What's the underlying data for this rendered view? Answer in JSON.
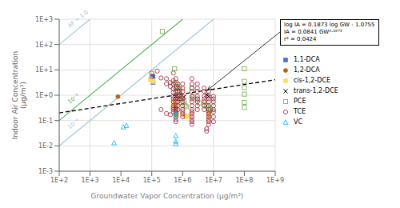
{
  "chart_data": {
    "type": "scatter",
    "xlabel": "Groundwater Vapor Concentration (μg/m³)",
    "ylabel": "Indoor Air Concentration\n(μg/m³)",
    "log": true,
    "grid": true,
    "legend": "right",
    "xlim": [
      100,
      1000000000
    ],
    "ylim": [
      0.001,
      1000
    ],
    "xticks": [
      {
        "value": 100,
        "label": "1E+2"
      },
      {
        "value": 1000,
        "label": "1E+3"
      },
      {
        "value": 10000,
        "label": "1E+4"
      },
      {
        "value": 100000,
        "label": "1E+5"
      },
      {
        "value": 1000000,
        "label": "1E+6"
      },
      {
        "value": 10000000,
        "label": "1E+7"
      },
      {
        "value": 100000000,
        "label": "1E+8"
      },
      {
        "value": 1000000000,
        "label": "1E+9"
      }
    ],
    "yticks": [
      {
        "value": 0.001,
        "label": "1E-3"
      },
      {
        "value": 0.01,
        "label": "1E-2"
      },
      {
        "value": 0.1,
        "label": "1E-1"
      },
      {
        "value": 1,
        "label": "1E+0"
      },
      {
        "value": 10,
        "label": "1E+1"
      },
      {
        "value": 100,
        "label": "1E+2"
      },
      {
        "value": 1000,
        "label": "1E+3"
      }
    ],
    "lines": [
      {
        "type": "line",
        "color": "#a0c4d8",
        "line_style": "solid",
        "x": [
          100,
          1000
        ],
        "values": [
          100,
          1000
        ]
      },
      {
        "type": "line",
        "color": "#4caf50",
        "line_style": "solid",
        "x": [
          100,
          1000000
        ],
        "values": [
          0.1,
          1000
        ]
      },
      {
        "type": "line",
        "color": "#a0c4d8",
        "line_style": "solid",
        "x": [
          100,
          10000000
        ],
        "values": [
          0.01,
          1000
        ]
      },
      {
        "type": "line",
        "color": "#000000",
        "line_style": "dashed",
        "x": [
          100,
          1000000000
        ],
        "values": [
          0.19911,
          4.0757
        ]
      }
    ],
    "series": [
      {
        "name": "1,1-DCA",
        "type": "scatter",
        "color": "#4472c4",
        "marker": "square",
        "x": [
          110000,
          110000
        ],
        "values": [
          5.5,
          3.2
        ]
      },
      {
        "name": "1,2-DCA",
        "type": "scatter",
        "color": "#c55a11",
        "marker": "circle",
        "x": [
          8000
        ],
        "values": [
          0.88
        ]
      },
      {
        "name": "cis-1,2-DCE",
        "type": "scatter",
        "color": "#ffd966",
        "marker": "square",
        "x": [
          90000,
          110000,
          500000,
          550000,
          550000,
          600000,
          650000,
          650000,
          1200000,
          1300000,
          1500000,
          7000000,
          7000000
        ],
        "values": [
          4.2,
          3.5,
          0.55,
          0.45,
          0.38,
          0.22,
          0.19,
          0.16,
          0.16,
          0.14,
          0.15,
          0.18,
          0.14
        ]
      },
      {
        "name": "trans-1,2-DCE",
        "type": "scatter",
        "color": "#000000",
        "marker": "x",
        "x": [
          600000,
          1100000,
          6000000,
          7000000
        ],
        "values": [
          0.88,
          0.85,
          1.05,
          0.9
        ]
      },
      {
        "name": "PCE",
        "type": "scatter",
        "color": "#70ad47",
        "marker": "square-open",
        "x": [
          220000,
          550000,
          600000,
          650000,
          700000,
          800000,
          900000,
          900000,
          1100000,
          1200000,
          1300000,
          2000000,
          2200000,
          3000000,
          3500000,
          5000000,
          6000000,
          7000000,
          8000000,
          100000000,
          100000000,
          100000000,
          100000000,
          100000000,
          100000000
        ],
        "values": [
          330,
          11,
          3.2,
          2.2,
          1.4,
          1.1,
          0.75,
          0.52,
          0.55,
          0.4,
          0.35,
          1.9,
          0.85,
          0.68,
          0.5,
          0.42,
          0.38,
          0.32,
          0.28,
          11,
          3.5,
          2.0,
          1.1,
          0.52,
          0.33
        ]
      },
      {
        "name": "TCE",
        "type": "scatter",
        "color": "#9b2335",
        "marker": "circle-open",
        "x": [
          100000,
          100000,
          150000,
          200000,
          300000,
          300000,
          400000,
          400000,
          500000,
          500000,
          500000,
          500000,
          500000,
          500000,
          500000,
          500000,
          500000,
          500000,
          500000,
          500000,
          600000,
          600000,
          600000,
          600000,
          600000,
          600000,
          600000,
          600000,
          600000,
          600000,
          600000,
          600000,
          600000,
          600000,
          600000,
          700000,
          700000,
          700000,
          700000,
          700000,
          700000,
          700000,
          700000,
          800000,
          800000,
          800000,
          800000,
          1000000,
          1000000,
          1000000,
          1000000,
          1000000,
          1000000,
          1000000,
          1000000,
          1000000,
          1000000,
          1000000,
          2000000,
          2000000,
          2000000,
          2000000,
          2000000,
          2000000,
          2000000,
          2000000,
          2000000,
          2000000,
          2000000,
          2000000,
          2000000,
          2000000,
          2000000,
          3000000,
          3000000,
          3000000,
          3000000,
          3000000,
          3000000,
          3000000,
          3000000,
          5000000,
          5000000,
          5000000,
          5000000,
          5000000,
          5000000,
          5000000,
          7000000,
          7000000,
          7000000,
          7000000,
          7000000,
          7000000,
          7000000,
          7000000,
          7000000,
          7000000,
          7000000,
          7000000,
          10000000,
          10000000,
          10000000,
          10000000,
          10000000,
          10000000,
          10000000,
          10000000,
          200000,
          300000,
          400000,
          6000000,
          6000000
        ],
        "values": [
          7.5,
          5.5,
          9.0,
          4.8,
          4.5,
          2.8,
          3.2,
          2.2,
          7.5,
          3.8,
          2.8,
          1.8,
          1.3,
          0.9,
          0.72,
          0.55,
          0.38,
          0.32,
          0.27,
          0.22,
          4.5,
          2.8,
          1.9,
          1.4,
          0.9,
          0.72,
          0.55,
          0.38,
          0.32,
          0.27,
          0.22,
          0.18,
          0.14,
          0.11,
          0.09,
          2.8,
          1.9,
          1.4,
          0.9,
          0.72,
          0.55,
          0.38,
          0.27,
          1.9,
          1.4,
          0.9,
          0.72,
          2.8,
          1.9,
          1.4,
          0.9,
          0.72,
          0.55,
          0.38,
          0.27,
          0.22,
          0.18,
          0.14,
          4.5,
          2.8,
          1.9,
          1.4,
          0.9,
          0.72,
          0.55,
          0.38,
          0.27,
          0.22,
          0.18,
          0.14,
          0.11,
          0.09,
          0.07,
          2.8,
          1.9,
          1.4,
          0.9,
          0.72,
          0.55,
          0.38,
          0.27,
          1.9,
          1.4,
          0.9,
          0.72,
          0.55,
          0.38,
          0.27,
          1.4,
          0.9,
          0.72,
          0.55,
          0.38,
          0.27,
          0.22,
          0.18,
          0.14,
          0.11,
          0.09,
          0.07,
          0.9,
          0.72,
          0.55,
          0.38,
          0.27,
          0.22,
          0.14,
          0.09,
          0.27,
          0.19,
          0.17,
          0.047,
          0.038
        ]
      },
      {
        "name": "VC",
        "type": "scatter",
        "color": "#00b0f0",
        "marker": "triangle-open",
        "x": [
          6000,
          12000,
          15000,
          600000,
          600000,
          600000,
          600000,
          600000
        ],
        "values": [
          0.013,
          0.055,
          0.063,
          0.025,
          0.015,
          0.012,
          0.19,
          0.17
        ]
      }
    ],
    "annotations": [
      {
        "text": "AF = 1.0",
        "x": 220,
        "y": 446.68,
        "color": "#a0c4d8"
      },
      {
        "text": "10⁻³",
        "x": 220,
        "y": 0.44668,
        "color": "#4caf50"
      },
      {
        "text": "10⁻⁴",
        "x": 220,
        "y": 0.044668,
        "color": "#a0c4d8"
      },
      {
        "text": "log IA = 0.1873 log GW - 1.0755\nIA = 0.0841 GW⁰·¹⁸⁷³\nr² = 0.0424",
        "xy": [
          6500000,
          1.6
        ]
      }
    ]
  }
}
